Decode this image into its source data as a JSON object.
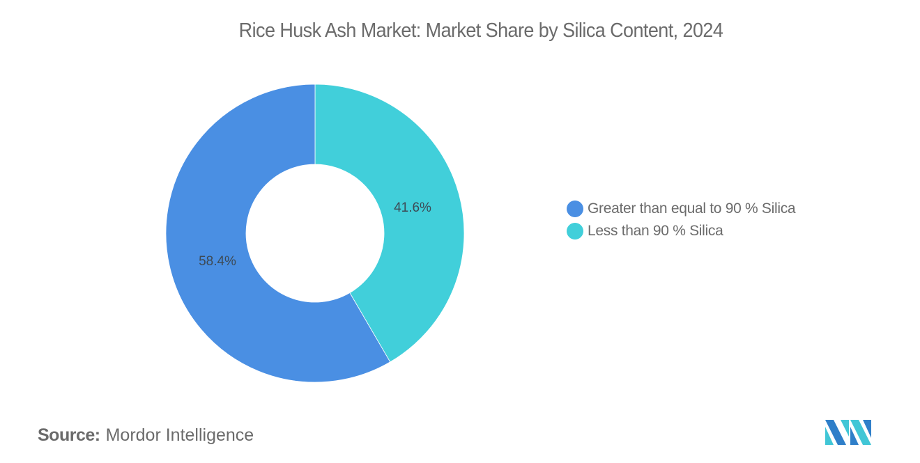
{
  "title": "Rice Husk Ash Market: Market Share by Silica Content, 2024",
  "chart_data": {
    "type": "pie",
    "subtype": "donut",
    "title": "Rice Husk Ash Market: Market Share by Silica Content, 2024",
    "categories": [
      "Greater than equal to 90 % Silica",
      "Less than 90 % Silica"
    ],
    "values": [
      58.4,
      41.6
    ],
    "unit": "%",
    "data_labels": [
      "58.4%",
      "41.6%"
    ],
    "colors": [
      "#4a8fe3",
      "#41cfda"
    ],
    "legend_position": "right",
    "start_angle": "top, clockwise: Less than 90 % Silica first"
  },
  "legend": {
    "items": [
      {
        "label": "Greater than equal to 90 % Silica",
        "color": "#4a8fe3"
      },
      {
        "label": "Less than 90 % Silica",
        "color": "#41cfda"
      }
    ]
  },
  "source": {
    "key": "Source:",
    "value": "Mordor Intelligence"
  },
  "logo": {
    "icon": "mordor-intelligence-logo-icon"
  }
}
